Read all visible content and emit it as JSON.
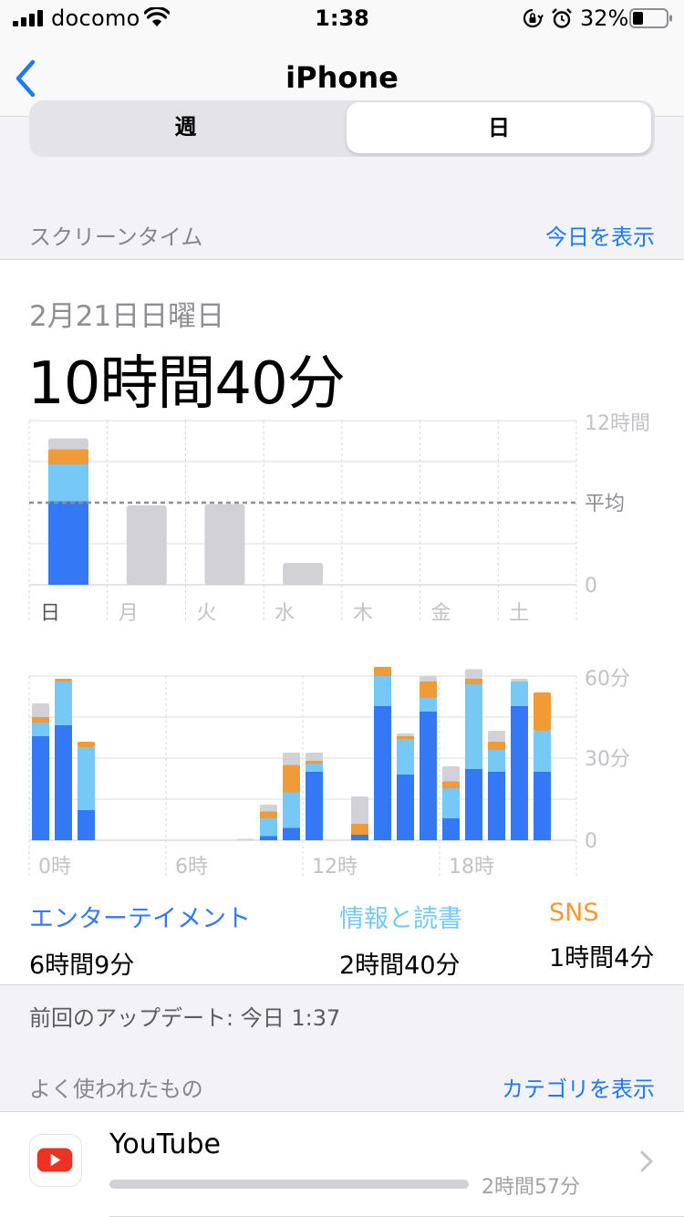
{
  "status": {
    "carrier": "docomo",
    "time": "1:38",
    "battery": "32%"
  },
  "nav": {
    "back_icon": "chevron-left-icon",
    "title": "iPhone"
  },
  "segmented": {
    "week": "週",
    "day": "日",
    "selected": "日"
  },
  "screen_time": {
    "header": "スクリーンタイム",
    "show_today": "今日を表示",
    "date": "2月21日日曜日",
    "total": "10時間40分"
  },
  "categories": [
    {
      "name": "エンターテイメント",
      "time": "6時間9分",
      "color": "#3478f6"
    },
    {
      "name": "情報と読書",
      "time": "2時間40分",
      "color": "#76c8f6"
    },
    {
      "name": "SNS",
      "time": "1時間4分",
      "color": "#f19b37"
    }
  ],
  "other_color": "#d1d1d6",
  "chart_data": [
    {
      "type": "bar",
      "categories": [
        "日",
        "月",
        "火",
        "水",
        "木",
        "金",
        "土"
      ],
      "y_tick_labels": [
        "12時間",
        "平均",
        "0"
      ],
      "ylim": [
        0,
        12
      ],
      "average": 6,
      "selected_index": 0,
      "series": [
        {
          "name": "エンターテイメント",
          "values": [
            6.1,
            0,
            0,
            0,
            0,
            0,
            0
          ]
        },
        {
          "name": "情報と読書",
          "values": [
            2.7,
            0,
            0,
            0,
            0,
            0,
            0
          ]
        },
        {
          "name": "SNS",
          "values": [
            1.1,
            0,
            0,
            0,
            0,
            0,
            0
          ]
        },
        {
          "values": [
            0.8,
            5.8,
            5.9,
            1.6,
            0,
            0,
            0
          ]
        }
      ],
      "grid": true
    },
    {
      "type": "bar",
      "categories": [
        "0時",
        "1時",
        "2時",
        "3時",
        "4時",
        "5時",
        "6時",
        "7時",
        "8時",
        "9時",
        "10時",
        "11時",
        "12時",
        "13時",
        "14時",
        "15時",
        "16時",
        "17時",
        "18時",
        "19時",
        "20時",
        "21時",
        "22時",
        "23時"
      ],
      "x_tick_labels": [
        "0時",
        "6時",
        "12時",
        "18時"
      ],
      "y_tick_labels": [
        "60分",
        "30分",
        "0"
      ],
      "ylim": [
        0,
        60
      ],
      "series": [
        {
          "name": "エンターテイメント",
          "values": [
            38,
            42,
            11,
            0,
            0,
            0,
            0,
            0,
            0,
            0,
            1.5,
            4.5,
            25,
            0,
            2,
            49,
            24,
            47,
            8,
            26,
            25,
            49,
            25,
            0
          ]
        },
        {
          "name": "情報と読書",
          "values": [
            5,
            16,
            23,
            0,
            0,
            0,
            0,
            0,
            0,
            0,
            6.5,
            13,
            3,
            0,
            0,
            11,
            13,
            5,
            11,
            31,
            8,
            9,
            15,
            0
          ]
        },
        {
          "name": "SNS",
          "values": [
            2,
            1,
            2,
            0,
            0,
            0,
            0,
            0,
            0,
            0,
            2.5,
            10,
            1,
            0,
            4,
            6,
            1,
            6,
            2.5,
            2,
            3,
            0,
            14,
            0
          ]
        },
        {
          "values": [
            5,
            0,
            0,
            0,
            0,
            0,
            0,
            0,
            0,
            0.5,
            2.5,
            4.5,
            3,
            0,
            10,
            3,
            1,
            2,
            5.5,
            3.5,
            4,
            1,
            0,
            0
          ]
        }
      ],
      "grid": true
    }
  ],
  "last_update": "前回のアップデート: 今日 1:37",
  "most_used": {
    "header": "よく使われたもの",
    "show_categories": "カテゴリを表示",
    "apps": [
      {
        "name": "YouTube",
        "time": "2時間57分",
        "icon": "youtube-icon"
      }
    ]
  }
}
